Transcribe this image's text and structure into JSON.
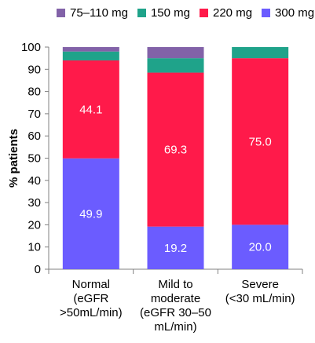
{
  "chart_data": {
    "type": "bar",
    "stacked": true,
    "title": "",
    "xlabel": "",
    "ylabel": "% patients",
    "ylim": [
      0,
      100
    ],
    "yticks": [
      0,
      10,
      20,
      30,
      40,
      50,
      60,
      70,
      80,
      90,
      100
    ],
    "grid": false,
    "legend_position": "top",
    "categories": [
      [
        "Normal",
        "(eGFR",
        ">50mL/min)"
      ],
      [
        "Mild to",
        "moderate",
        "(eGFR 30–50",
        "mL/min)"
      ],
      [
        "Severe",
        "(<30 mL/min)"
      ]
    ],
    "series": [
      {
        "name": "300 mg",
        "color": "#6B5CFF",
        "values": [
          49.9,
          19.2,
          20.0
        ],
        "labels": [
          "49.9",
          "19.2",
          "20.0"
        ]
      },
      {
        "name": "220 mg",
        "color": "#FF1A4A",
        "values": [
          44.1,
          69.3,
          75.0
        ],
        "labels": [
          "44.1",
          "69.3",
          "75.0"
        ]
      },
      {
        "name": "150 mg",
        "color": "#1FA38A",
        "values": [
          4.0,
          6.5,
          5.0
        ],
        "labels": [
          "",
          "",
          ""
        ]
      },
      {
        "name": "75–110 mg",
        "color": "#8262A8",
        "values": [
          2.0,
          5.0,
          0.0
        ],
        "labels": [
          "",
          "",
          ""
        ]
      }
    ],
    "legend_order": [
      "75–110 mg",
      "150 mg",
      "220 mg",
      "300 mg"
    ]
  }
}
